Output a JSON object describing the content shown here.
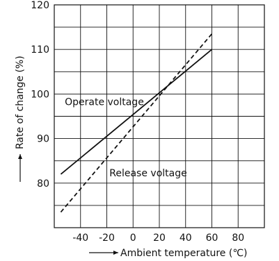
{
  "chart_data": {
    "type": "line",
    "title": "",
    "xlabel": "Ambient temperature (℃)",
    "ylabel": "Rate of change (%)",
    "xlim": [
      -60,
      100
    ],
    "ylim": [
      70,
      120
    ],
    "grid": true,
    "x_ticks": [
      -40,
      -20,
      0,
      20,
      40,
      60,
      80
    ],
    "y_ticks": [
      80,
      90,
      100,
      110,
      120
    ],
    "series": [
      {
        "name": "Operate voltage",
        "style": "solid",
        "color": "#111111",
        "x": [
          -55,
          60
        ],
        "y": [
          82,
          110
        ]
      },
      {
        "name": "Release voltage",
        "style": "dashed",
        "color": "#111111",
        "x": [
          -55,
          60
        ],
        "y": [
          73.5,
          113.5
        ]
      }
    ],
    "annotations": [
      {
        "text": "Operate voltage",
        "x": -52,
        "y": 97.5
      },
      {
        "text": "Release voltage",
        "x": -18,
        "y": 81.5
      }
    ]
  }
}
